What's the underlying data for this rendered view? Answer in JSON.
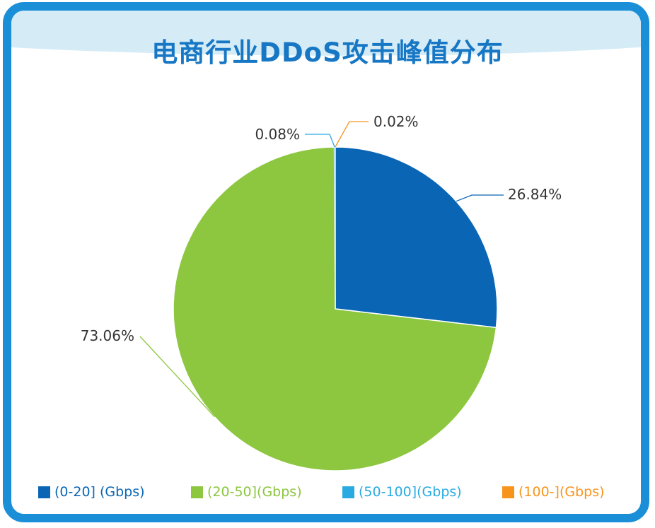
{
  "title": "电商行业DDoS攻击峰值分布",
  "chart_data": {
    "type": "pie",
    "title": "电商行业DDoS攻击峰值分布",
    "start": "12 o'clock, clockwise",
    "slices": [
      {
        "name": "(0-20] (Gbps)",
        "value": 26.84,
        "label": "26.84%",
        "color": "#0a66b5",
        "text_color": "#0a66b5"
      },
      {
        "name": "(20-50](Gbps)",
        "value": 73.06,
        "label": "73.06%",
        "color": "#8dc63f",
        "text_color": "#8dc63f"
      },
      {
        "name": "(50-100](Gbps)",
        "value": 0.08,
        "label": "0.08%",
        "color": "#29abe2",
        "text_color": "#29abe2"
      },
      {
        "name": "(100-](Gbps)",
        "value": 0.02,
        "label": "0.02%",
        "color": "#f7941d",
        "text_color": "#f7941d"
      }
    ],
    "legend_position": "bottom"
  }
}
